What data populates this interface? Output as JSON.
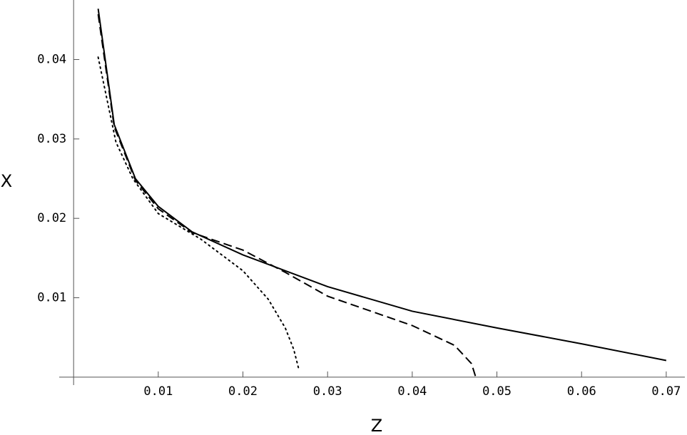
{
  "chart_data": {
    "type": "line",
    "x_label": "Z",
    "y_label": "X",
    "xlim": [
      -0.0017,
      0.0722
    ],
    "ylim": [
      -0.001,
      0.0475
    ],
    "xticks": [
      0.01,
      0.02,
      0.03,
      0.04,
      0.05,
      0.06,
      0.07
    ],
    "yticks": [
      0.01,
      0.02,
      0.03,
      0.04
    ],
    "series": [
      {
        "color": "#000000",
        "style": "solid",
        "x": [
          0.0029,
          0.0048,
          0.0073,
          0.01,
          0.014,
          0.02,
          0.025,
          0.03,
          0.04,
          0.05,
          0.06,
          0.07
        ],
        "values": [
          0.0464,
          0.0318,
          0.025,
          0.0215,
          0.0183,
          0.0154,
          0.0134,
          0.0114,
          0.0083,
          0.0062,
          0.0042,
          0.0021
        ]
      },
      {
        "color": "#000000",
        "style": "dashed",
        "x": [
          0.0029,
          0.0048,
          0.0073,
          0.01,
          0.014,
          0.02,
          0.025,
          0.03,
          0.04,
          0.045,
          0.047,
          0.0475
        ],
        "values": [
          0.0457,
          0.0315,
          0.0248,
          0.0212,
          0.0182,
          0.016,
          0.0132,
          0.0102,
          0.0065,
          0.004,
          0.0017,
          0
        ]
      },
      {
        "color": "#000000",
        "style": "dotted",
        "x": [
          0.0029,
          0.005,
          0.007,
          0.01,
          0.015,
          0.02,
          0.023,
          0.025,
          0.026,
          0.0266
        ],
        "values": [
          0.0403,
          0.0296,
          0.025,
          0.0206,
          0.0174,
          0.0134,
          0.0098,
          0.0062,
          0.0035,
          0.001
        ]
      }
    ]
  }
}
